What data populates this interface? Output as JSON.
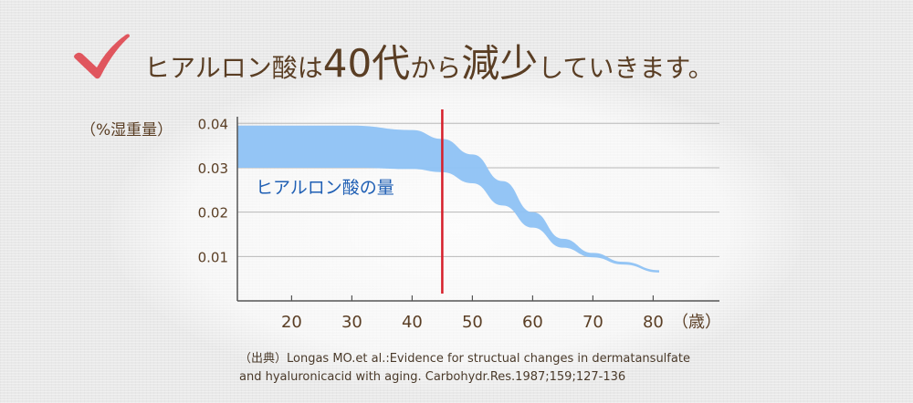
{
  "headline": {
    "segments": [
      {
        "text": "ヒアルロン酸は",
        "large": false
      },
      {
        "text": "40代",
        "large": true
      },
      {
        "text": "から",
        "large": false
      },
      {
        "text": "減少",
        "large": true
      },
      {
        "text": "していきます。",
        "large": false
      }
    ],
    "check_icon": "checkmark-icon"
  },
  "chart_data": {
    "type": "area",
    "ylabel": "（%湿重量）",
    "xlabel_unit": "（歳）",
    "x_ticks": [
      20,
      30,
      40,
      50,
      60,
      70,
      80
    ],
    "y_ticks": [
      0.01,
      0.02,
      0.03,
      0.04
    ],
    "y_tick_labels": [
      "0.01",
      "0.02",
      "0.03",
      "0.04"
    ],
    "xlim": [
      11,
      91
    ],
    "ylim": [
      0,
      0.0415
    ],
    "grid": true,
    "series": [
      {
        "name": "ヒアルロン酸の量",
        "x": [
          11,
          20,
          30,
          40,
          45,
          50,
          55,
          60,
          65,
          70,
          75,
          81
        ],
        "upper": [
          0.0395,
          0.0395,
          0.0395,
          0.0385,
          0.0365,
          0.033,
          0.027,
          0.02,
          0.014,
          0.0108,
          0.0088,
          0.0069
        ],
        "lower": [
          0.03,
          0.03,
          0.03,
          0.0297,
          0.029,
          0.0265,
          0.0215,
          0.0165,
          0.012,
          0.0098,
          0.0082,
          0.0064
        ],
        "color": "#8ec2f4"
      }
    ],
    "reference_line": {
      "x": 45,
      "color": "#d61e2a"
    },
    "axis_color": "#555555",
    "label_color": "#5a3e24",
    "series_label_color": "#1f5fb4"
  },
  "source": {
    "line1": "（出典）Longas MO.et al.:Evidence for structual changes in dermatansulfate",
    "line2": "and hyaluronicacid with aging. Carbohydr.Res.1987;159;127-136"
  }
}
